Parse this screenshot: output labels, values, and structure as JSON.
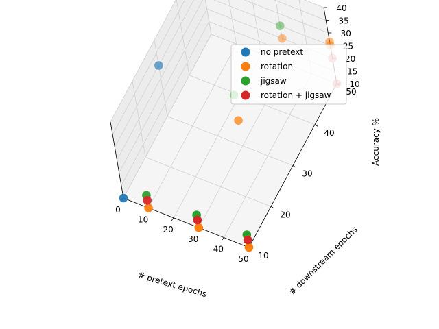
{
  "chart_data": {
    "type": "scatter",
    "projection": "3d",
    "xlabel": "# pretext epochs",
    "ylabel": "# downstream epochs",
    "zlabel": "Accuracy %",
    "xticks": [
      0,
      10,
      20,
      30,
      40,
      50
    ],
    "yticks": [
      10,
      20,
      30,
      40,
      50
    ],
    "zticks": [
      10,
      15,
      20,
      25,
      30,
      35,
      40
    ],
    "xlim": [
      0,
      50
    ],
    "ylim": [
      10,
      50
    ],
    "zlim": [
      10,
      40
    ],
    "grid": true,
    "legend_position": "top-right",
    "series": [
      {
        "name": "no pretext",
        "color": "#1f77b4",
        "points": [
          {
            "x": 0,
            "y": 10,
            "z": 10
          },
          {
            "x": 0,
            "y": 30,
            "z": 30
          },
          {
            "x": 0,
            "y": 50,
            "z": 30
          },
          {
            "x": 0,
            "y": 50,
            "z": 40
          }
        ]
      },
      {
        "name": "rotation",
        "color": "#ff7f0e",
        "points": [
          {
            "x": 10,
            "y": 10,
            "z": 10
          },
          {
            "x": 30,
            "y": 10,
            "z": 10
          },
          {
            "x": 50,
            "y": 10,
            "z": 10
          },
          {
            "x": 30,
            "y": 30,
            "z": 20
          },
          {
            "x": 30,
            "y": 50,
            "z": 20
          },
          {
            "x": 30,
            "y": 50,
            "z": 40
          },
          {
            "x": 50,
            "y": 50,
            "z": 26.5
          },
          {
            "x": 50,
            "y": 50,
            "z": 25
          }
        ]
      },
      {
        "name": "jigsaw",
        "color": "#2ca02c",
        "points": [
          {
            "x": 10,
            "y": 10,
            "z": 15
          },
          {
            "x": 30,
            "y": 10,
            "z": 15
          },
          {
            "x": 50,
            "y": 10,
            "z": 15
          },
          {
            "x": 30,
            "y": 30,
            "z": 30
          },
          {
            "x": 30,
            "y": 50,
            "z": 25
          }
        ]
      },
      {
        "name": "rotation + jigsaw",
        "color": "#d62728",
        "points": [
          {
            "x": 10,
            "y": 10,
            "z": 13
          },
          {
            "x": 30,
            "y": 10,
            "z": 13
          },
          {
            "x": 50,
            "y": 10,
            "z": 13
          },
          {
            "x": 50,
            "y": 50,
            "z": 20
          },
          {
            "x": 50,
            "y": 50,
            "z": 10
          }
        ]
      }
    ]
  }
}
